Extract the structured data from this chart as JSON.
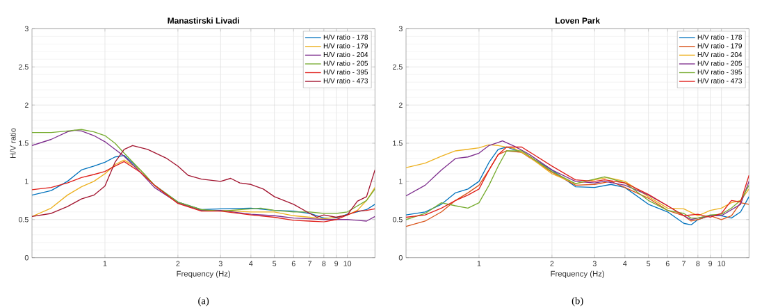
{
  "chart_data": [
    {
      "type": "line",
      "title": "Manastirski Livadi",
      "xlabel": "Frequency (Hz)",
      "ylabel": "H/V ratio",
      "annotations": [
        "(a)"
      ],
      "log": "x",
      "grid": true,
      "legend": "top right",
      "xlim": [
        0.5,
        13
      ],
      "xticks": [
        1,
        2,
        3,
        4,
        5,
        6,
        7,
        8,
        9,
        10
      ],
      "ylim": [
        0,
        3
      ],
      "yticks": [
        0,
        0.5,
        1,
        1.5,
        2,
        2.5,
        3
      ],
      "series": [
        {
          "name": "H/V ratio - 178",
          "color": "#0072bd",
          "x": [
            0.5,
            0.6,
            0.7,
            0.8,
            0.9,
            1,
            1.1,
            1.2,
            1.4,
            1.6,
            2,
            2.5,
            3,
            4,
            5,
            6,
            7,
            8,
            9,
            10,
            12,
            13
          ],
          "values": [
            0.82,
            0.88,
            1.0,
            1.15,
            1.2,
            1.25,
            1.32,
            1.34,
            1.15,
            0.95,
            0.73,
            0.63,
            0.64,
            0.65,
            0.62,
            0.61,
            0.58,
            0.52,
            0.52,
            0.57,
            0.63,
            0.7
          ]
        },
        {
          "name": "H/V ratio - 179",
          "color": "#edb120",
          "x": [
            0.5,
            0.6,
            0.7,
            0.8,
            0.9,
            1,
            1.1,
            1.2,
            1.4,
            1.6,
            2,
            2.5,
            3,
            4,
            5,
            6,
            7,
            8,
            9,
            10,
            11,
            12,
            13
          ],
          "values": [
            0.54,
            0.65,
            0.82,
            0.93,
            1.0,
            1.1,
            1.22,
            1.28,
            1.15,
            0.95,
            0.72,
            0.62,
            0.62,
            0.6,
            0.6,
            0.55,
            0.53,
            0.51,
            0.53,
            0.56,
            0.62,
            0.75,
            0.92
          ]
        },
        {
          "name": "H/V ratio - 204",
          "color": "#7e2f8e",
          "x": [
            0.5,
            0.6,
            0.7,
            0.75,
            0.8,
            0.9,
            1,
            1.1,
            1.2,
            1.4,
            1.6,
            2,
            2.5,
            3,
            4,
            5,
            6,
            7,
            8,
            9,
            10,
            11,
            12,
            13
          ],
          "values": [
            1.47,
            1.55,
            1.65,
            1.67,
            1.66,
            1.6,
            1.52,
            1.42,
            1.33,
            1.12,
            0.92,
            0.72,
            0.62,
            0.62,
            0.57,
            0.55,
            0.52,
            0.51,
            0.5,
            0.5,
            0.5,
            0.49,
            0.48,
            0.54
          ]
        },
        {
          "name": "H/V ratio - 205",
          "color": "#77ac30",
          "x": [
            0.5,
            0.6,
            0.7,
            0.8,
            0.9,
            1,
            1.1,
            1.2,
            1.4,
            1.6,
            2,
            2.5,
            3,
            4,
            4.4,
            5,
            6,
            7,
            8,
            9,
            10,
            12,
            13
          ],
          "values": [
            1.64,
            1.64,
            1.66,
            1.68,
            1.65,
            1.6,
            1.5,
            1.37,
            1.15,
            0.95,
            0.73,
            0.63,
            0.61,
            0.64,
            0.65,
            0.62,
            0.6,
            0.6,
            0.58,
            0.58,
            0.6,
            0.75,
            0.9
          ]
        },
        {
          "name": "H/V ratio - 395",
          "color": "#e0201b",
          "x": [
            0.5,
            0.6,
            0.7,
            0.8,
            0.9,
            1,
            1.1,
            1.2,
            1.4,
            1.6,
            2,
            2.5,
            3,
            4,
            5,
            6,
            7,
            8,
            9,
            10,
            11,
            12,
            13
          ],
          "values": [
            0.89,
            0.92,
            0.98,
            1.05,
            1.09,
            1.13,
            1.2,
            1.26,
            1.12,
            0.95,
            0.71,
            0.61,
            0.61,
            0.56,
            0.53,
            0.49,
            0.48,
            0.47,
            0.5,
            0.56,
            0.61,
            0.62,
            0.64
          ]
        },
        {
          "name": "H/V ratio - 473",
          "color": "#a2142f",
          "x": [
            0.5,
            0.6,
            0.7,
            0.8,
            0.9,
            1,
            1.1,
            1.2,
            1.3,
            1.5,
            1.8,
            2,
            2.2,
            2.5,
            3,
            3.3,
            3.6,
            4,
            4.5,
            5,
            6,
            7,
            7.5,
            8,
            9,
            10,
            11,
            12,
            13
          ],
          "values": [
            0.54,
            0.58,
            0.67,
            0.77,
            0.82,
            0.94,
            1.25,
            1.42,
            1.47,
            1.42,
            1.3,
            1.2,
            1.08,
            1.03,
            1.0,
            1.04,
            0.98,
            0.96,
            0.9,
            0.8,
            0.7,
            0.58,
            0.53,
            0.56,
            0.53,
            0.56,
            0.74,
            0.8,
            1.15
          ]
        }
      ]
    },
    {
      "type": "line",
      "title": "Loven Park",
      "xlabel": "Frequency (Hz)",
      "annotations": [
        "(b)"
      ],
      "log": "x",
      "grid": true,
      "legend": "top right",
      "xlim": [
        0.5,
        13
      ],
      "xticks": [
        1,
        2,
        3,
        4,
        5,
        6,
        7,
        8,
        9,
        10
      ],
      "ylim": [
        0,
        3
      ],
      "yticks": [
        0,
        0.5,
        1,
        1.5,
        2,
        2.5,
        3
      ],
      "series": [
        {
          "name": "H/V ratio - 178",
          "color": "#0072bd",
          "x": [
            0.5,
            0.6,
            0.7,
            0.8,
            0.9,
            1,
            1.1,
            1.2,
            1.3,
            1.5,
            2,
            2.5,
            3,
            3.5,
            4,
            5,
            6,
            7,
            7.5,
            8,
            9,
            10,
            11,
            12,
            13
          ],
          "values": [
            0.56,
            0.6,
            0.7,
            0.85,
            0.9,
            1.0,
            1.25,
            1.42,
            1.45,
            1.38,
            1.15,
            0.93,
            0.92,
            0.96,
            0.92,
            0.7,
            0.6,
            0.45,
            0.43,
            0.5,
            0.55,
            0.55,
            0.52,
            0.6,
            0.8
          ]
        },
        {
          "name": "H/V ratio - 179",
          "color": "#d95319",
          "x": [
            0.5,
            0.6,
            0.7,
            0.8,
            0.9,
            1,
            1.1,
            1.2,
            1.3,
            1.5,
            2,
            2.5,
            3,
            3.5,
            4,
            5,
            6,
            7,
            7.5,
            8,
            9,
            10,
            11,
            12,
            13
          ],
          "values": [
            0.41,
            0.48,
            0.6,
            0.75,
            0.85,
            0.95,
            1.15,
            1.35,
            1.4,
            1.38,
            1.12,
            0.95,
            0.96,
            1.0,
            0.92,
            0.78,
            0.62,
            0.55,
            0.48,
            0.5,
            0.55,
            0.5,
            0.55,
            0.72,
            0.7
          ]
        },
        {
          "name": "H/V ratio - 204",
          "color": "#edb120",
          "x": [
            0.5,
            0.6,
            0.7,
            0.8,
            0.9,
            1,
            1.1,
            1.2,
            1.4,
            1.6,
            2,
            2.5,
            3,
            3.4,
            4,
            5,
            6,
            7,
            8,
            9,
            10,
            11,
            12,
            13
          ],
          "values": [
            1.18,
            1.24,
            1.33,
            1.4,
            1.42,
            1.44,
            1.48,
            1.47,
            1.43,
            1.33,
            1.1,
            0.97,
            1.02,
            1.05,
            1.0,
            0.8,
            0.65,
            0.64,
            0.55,
            0.62,
            0.65,
            0.72,
            0.75,
            0.9
          ]
        },
        {
          "name": "H/V ratio - 205",
          "color": "#7e2f8e",
          "x": [
            0.5,
            0.6,
            0.7,
            0.8,
            0.9,
            1,
            1.1,
            1.2,
            1.25,
            1.4,
            1.6,
            2,
            2.5,
            3,
            3.3,
            4,
            5,
            6,
            7,
            7.5,
            8,
            9,
            10,
            12,
            13
          ],
          "values": [
            0.81,
            0.95,
            1.15,
            1.3,
            1.32,
            1.37,
            1.47,
            1.51,
            1.53,
            1.46,
            1.36,
            1.15,
            1.0,
            0.98,
            1.0,
            0.95,
            0.82,
            0.68,
            0.55,
            0.5,
            0.52,
            0.55,
            0.55,
            0.7,
            1.0
          ]
        },
        {
          "name": "H/V ratio - 395",
          "color": "#77ac30",
          "x": [
            0.5,
            0.6,
            0.7,
            0.8,
            0.9,
            1,
            1.1,
            1.2,
            1.3,
            1.5,
            2,
            2.5,
            3,
            3.3,
            4,
            5,
            6,
            7,
            7.5,
            8,
            9,
            10,
            11,
            12,
            13
          ],
          "values": [
            0.5,
            0.58,
            0.72,
            0.68,
            0.65,
            0.72,
            0.95,
            1.2,
            1.4,
            1.4,
            1.13,
            0.97,
            1.03,
            1.06,
            0.98,
            0.75,
            0.62,
            0.58,
            0.52,
            0.52,
            0.56,
            0.57,
            0.65,
            0.75,
            0.95
          ]
        },
        {
          "name": "H/V ratio - 473",
          "color": "#e0201b",
          "x": [
            0.5,
            0.6,
            0.7,
            0.8,
            0.9,
            1,
            1.1,
            1.2,
            1.3,
            1.5,
            2,
            2.5,
            3,
            3.3,
            4,
            5,
            6,
            7,
            8,
            9,
            10,
            11,
            12,
            13
          ],
          "values": [
            0.53,
            0.56,
            0.65,
            0.75,
            0.82,
            0.9,
            1.15,
            1.35,
            1.45,
            1.45,
            1.2,
            1.02,
            1.0,
            1.02,
            0.98,
            0.83,
            0.68,
            0.55,
            0.57,
            0.53,
            0.58,
            0.75,
            0.73,
            1.08
          ]
        }
      ]
    }
  ]
}
